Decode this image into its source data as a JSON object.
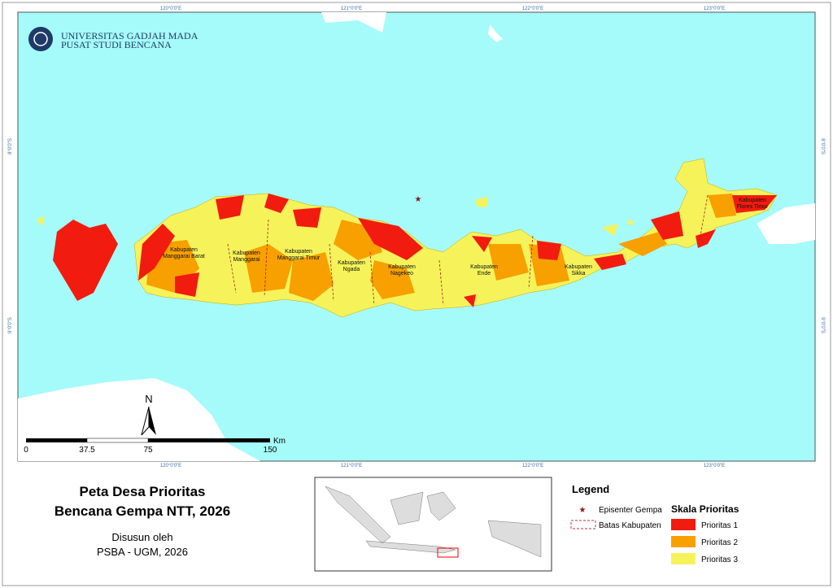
{
  "header": {
    "university": "UNIVERSITAS GADJAH MADA",
    "center": "PUSAT STUDI BENCANA"
  },
  "graticule": {
    "longitudes": [
      "120°0'0\"E",
      "121°0'0\"E",
      "122°0'0\"E",
      "123°0'0\"E"
    ],
    "latitudes": [
      "8°0'0\"S",
      "9°0'0\"S"
    ]
  },
  "map_labels": [
    {
      "line1": "Kabupaten",
      "line2": "Manggarai Barat"
    },
    {
      "line1": "Kabupaten",
      "line2": "Manggarai"
    },
    {
      "line1": "Kabupaten",
      "line2": "Manggarai Timur"
    },
    {
      "line1": "Kabupaten",
      "line2": "Ngada"
    },
    {
      "line1": "Kabupaten",
      "line2": "Nagekeo"
    },
    {
      "line1": "Kabupaten",
      "line2": "Ende"
    },
    {
      "line1": "Kabupaten",
      "line2": "Sikka"
    },
    {
      "line1": "Kabupaten",
      "line2": "Flores Timur"
    }
  ],
  "north": "N",
  "scale": {
    "ticks": [
      "0",
      "37.5",
      "75",
      "150"
    ],
    "unit": "Km"
  },
  "title": {
    "line1": "Peta Desa Prioritas",
    "line2": "Bencana Gempa NTT, 2026"
  },
  "credit": {
    "line1": "Disusun oleh",
    "line2": "PSBA - UGM, 2026"
  },
  "legend": {
    "title": "Legend",
    "epicenter": "Episenter Gempa",
    "boundary": "Batas Kabupaten",
    "scale_title": "Skala Prioritas",
    "classes": [
      "Prioritas 1",
      "Prioritas 2",
      "Prioritas 3"
    ]
  }
}
